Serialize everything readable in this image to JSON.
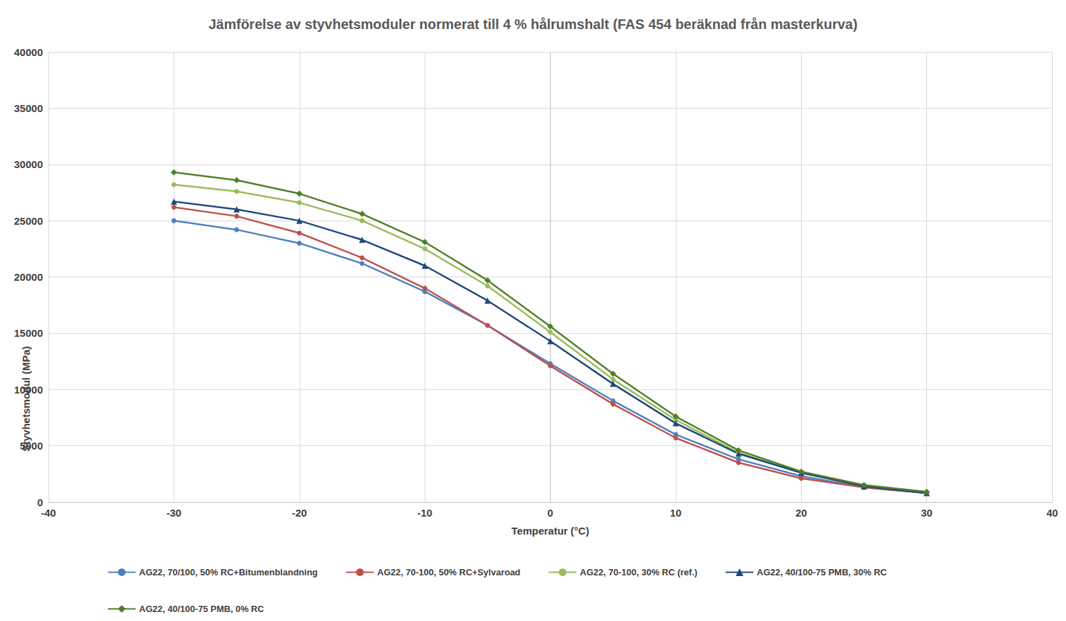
{
  "chart_data": {
    "type": "line",
    "title": "Jämförelse av styvhetsmoduler normerat till 4 % hålrumshalt (FAS 454 beräknad från masterkurva)",
    "x_label": "Temperatur (°C)",
    "y_label": "Styvhetsmodul (MPa)",
    "x": [
      -30,
      -25,
      -20,
      -15,
      -10,
      -5,
      0,
      5,
      10,
      15,
      20,
      25,
      30
    ],
    "series": [
      {
        "name": "AG22, 70/100, 50% RC+Bitumenblandning",
        "color": "#4f81bd",
        "marker": "circle",
        "values": [
          25000,
          24200,
          23000,
          21200,
          18700,
          15700,
          12300,
          9000,
          6000,
          3800,
          2300,
          1300,
          800
        ]
      },
      {
        "name": "AG22, 70-100, 50% RC+Sylvaroad",
        "color": "#c0504d",
        "marker": "circle",
        "values": [
          26200,
          25400,
          23900,
          21700,
          19000,
          15700,
          12100,
          8700,
          5700,
          3500,
          2100,
          1300,
          800
        ]
      },
      {
        "name": "AG22, 70-100, 30% RC (ref.)",
        "color": "#9bbb59",
        "marker": "circle",
        "values": [
          28200,
          27600,
          26600,
          25000,
          22500,
          19200,
          15100,
          10900,
          7300,
          4400,
          2600,
          1500,
          900
        ]
      },
      {
        "name": "AG22, 40/100-75 PMB, 30% RC",
        "color": "#1f497d",
        "marker": "triangle",
        "values": [
          26700,
          26000,
          25000,
          23300,
          21000,
          17900,
          14300,
          10500,
          7000,
          4300,
          2600,
          1400,
          800
        ]
      },
      {
        "name": "AG22, 40/100-75 PMB, 0% RC",
        "color": "#4f7f28",
        "marker": "diamond",
        "values": [
          29300,
          28600,
          27400,
          25600,
          23100,
          19700,
          15600,
          11400,
          7600,
          4600,
          2700,
          1500,
          900
        ]
      }
    ],
    "xlim": [
      -40,
      40
    ],
    "xticks": [
      -40,
      -30,
      -20,
      -10,
      0,
      10,
      20,
      30,
      40
    ],
    "ylim": [
      0,
      40000
    ],
    "yticks": [
      0,
      5000,
      10000,
      15000,
      20000,
      25000,
      30000,
      35000,
      40000
    ],
    "grid": true,
    "legend": "bottom",
    "line_style": "solid"
  }
}
